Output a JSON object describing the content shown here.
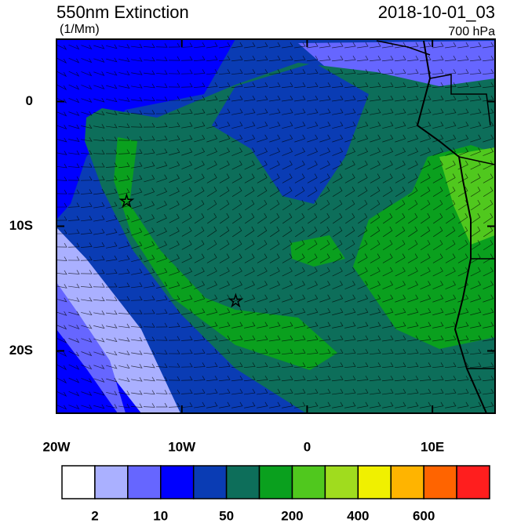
{
  "header": {
    "title": "550nm Extinction",
    "units": "(1/Mm)",
    "time": "2018-10-01_03",
    "level": "700 hPa"
  },
  "map": {
    "lon_range": [
      -20,
      15
    ],
    "lat_range": [
      5,
      -25
    ],
    "lon_ticks": [
      {
        "value": -20,
        "label": "20W"
      },
      {
        "value": -10,
        "label": "10W"
      },
      {
        "value": 0,
        "label": "0"
      },
      {
        "value": 10,
        "label": "10E"
      }
    ],
    "lat_ticks": [
      {
        "value": 0,
        "label": "0"
      },
      {
        "value": -10,
        "label": "10S"
      },
      {
        "value": -20,
        "label": "20S"
      }
    ],
    "markers": [
      {
        "lon": -14.4,
        "lat": -8
      },
      {
        "lon": -5.7,
        "lat": -16
      }
    ]
  },
  "colorbar": {
    "colors": [
      "#ffffff",
      "#aab0ff",
      "#6666ff",
      "#0000ff",
      "#0a3cb4",
      "#0d6e5a",
      "#0aa01e",
      "#50c81e",
      "#a0dc1e",
      "#f0f000",
      "#ffb400",
      "#ff6400",
      "#ff1e1e"
    ],
    "labels": [
      2,
      10,
      50,
      200,
      400,
      600
    ]
  }
}
